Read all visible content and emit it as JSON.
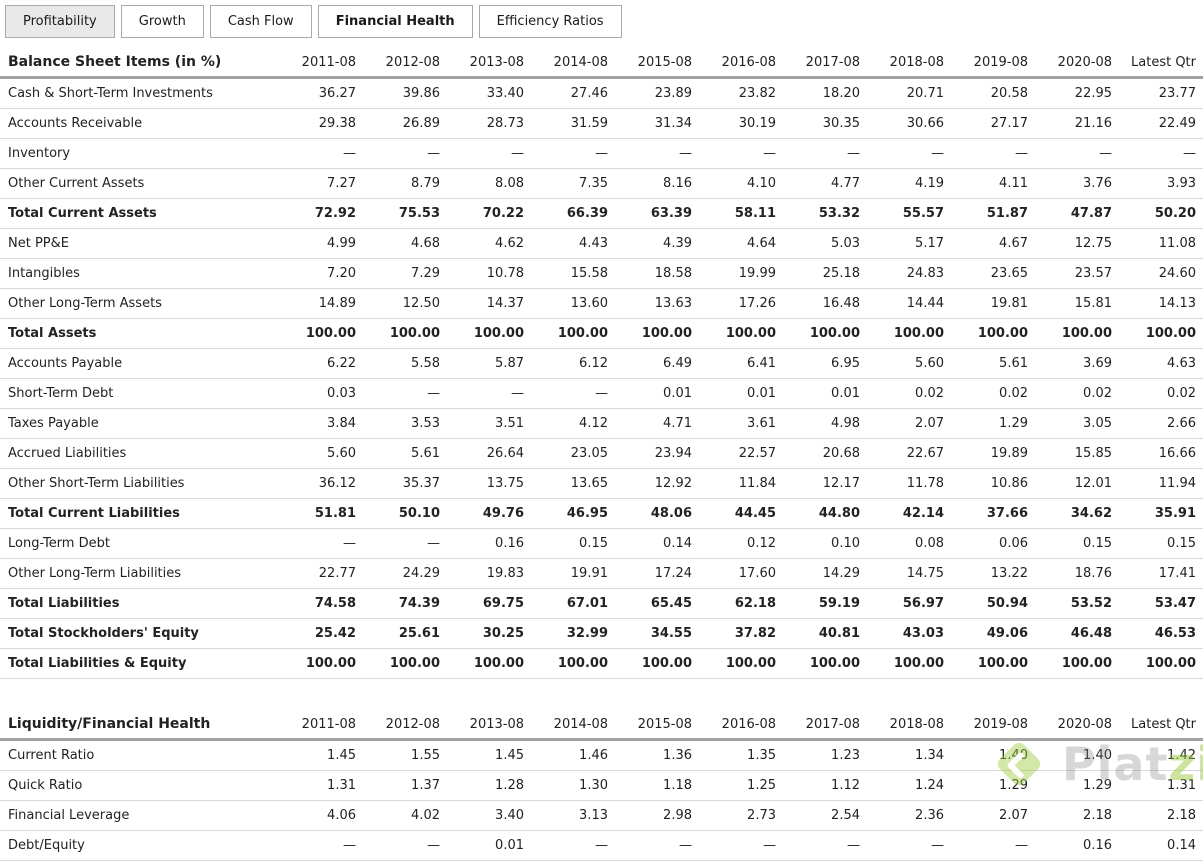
{
  "tabs": [
    {
      "label": "Profitability",
      "active": false,
      "shaded": true
    },
    {
      "label": "Growth",
      "active": false,
      "shaded": false
    },
    {
      "label": "Cash Flow",
      "active": false,
      "shaded": false
    },
    {
      "label": "Financial Health",
      "active": true,
      "shaded": false
    },
    {
      "label": "Efficiency Ratios",
      "active": false,
      "shaded": false
    }
  ],
  "columns": [
    "2011-08",
    "2012-08",
    "2013-08",
    "2014-08",
    "2015-08",
    "2016-08",
    "2017-08",
    "2018-08",
    "2019-08",
    "2020-08",
    "Latest Qtr"
  ],
  "sections": [
    {
      "title": "Balance Sheet Items (in %)",
      "rows": [
        {
          "label": "Cash & Short-Term Investments",
          "bold": false,
          "values": [
            "36.27",
            "39.86",
            "33.40",
            "27.46",
            "23.89",
            "23.82",
            "18.20",
            "20.71",
            "20.58",
            "22.95",
            "23.77"
          ]
        },
        {
          "label": "Accounts Receivable",
          "bold": false,
          "values": [
            "29.38",
            "26.89",
            "28.73",
            "31.59",
            "31.34",
            "30.19",
            "30.35",
            "30.66",
            "27.17",
            "21.16",
            "22.49"
          ]
        },
        {
          "label": "Inventory",
          "bold": false,
          "values": [
            "—",
            "—",
            "—",
            "—",
            "—",
            "—",
            "—",
            "—",
            "—",
            "—",
            "—"
          ]
        },
        {
          "label": "Other Current Assets",
          "bold": false,
          "values": [
            "7.27",
            "8.79",
            "8.08",
            "7.35",
            "8.16",
            "4.10",
            "4.77",
            "4.19",
            "4.11",
            "3.76",
            "3.93"
          ]
        },
        {
          "label": "Total Current Assets",
          "bold": true,
          "values": [
            "72.92",
            "75.53",
            "70.22",
            "66.39",
            "63.39",
            "58.11",
            "53.32",
            "55.57",
            "51.87",
            "47.87",
            "50.20"
          ]
        },
        {
          "label": "Net PP&E",
          "bold": false,
          "values": [
            "4.99",
            "4.68",
            "4.62",
            "4.43",
            "4.39",
            "4.64",
            "5.03",
            "5.17",
            "4.67",
            "12.75",
            "11.08"
          ]
        },
        {
          "label": "Intangibles",
          "bold": false,
          "values": [
            "7.20",
            "7.29",
            "10.78",
            "15.58",
            "18.58",
            "19.99",
            "25.18",
            "24.83",
            "23.65",
            "23.57",
            "24.60"
          ]
        },
        {
          "label": "Other Long-Term Assets",
          "bold": false,
          "values": [
            "14.89",
            "12.50",
            "14.37",
            "13.60",
            "13.63",
            "17.26",
            "16.48",
            "14.44",
            "19.81",
            "15.81",
            "14.13"
          ]
        },
        {
          "label": "Total Assets",
          "bold": true,
          "values": [
            "100.00",
            "100.00",
            "100.00",
            "100.00",
            "100.00",
            "100.00",
            "100.00",
            "100.00",
            "100.00",
            "100.00",
            "100.00"
          ]
        },
        {
          "label": "Accounts Payable",
          "bold": false,
          "values": [
            "6.22",
            "5.58",
            "5.87",
            "6.12",
            "6.49",
            "6.41",
            "6.95",
            "5.60",
            "5.61",
            "3.69",
            "4.63"
          ]
        },
        {
          "label": "Short-Term Debt",
          "bold": false,
          "values": [
            "0.03",
            "—",
            "—",
            "—",
            "0.01",
            "0.01",
            "0.01",
            "0.02",
            "0.02",
            "0.02",
            "0.02"
          ]
        },
        {
          "label": "Taxes Payable",
          "bold": false,
          "values": [
            "3.84",
            "3.53",
            "3.51",
            "4.12",
            "4.71",
            "3.61",
            "4.98",
            "2.07",
            "1.29",
            "3.05",
            "2.66"
          ]
        },
        {
          "label": "Accrued Liabilities",
          "bold": false,
          "values": [
            "5.60",
            "5.61",
            "26.64",
            "23.05",
            "23.94",
            "22.57",
            "20.68",
            "22.67",
            "19.89",
            "15.85",
            "16.66"
          ]
        },
        {
          "label": "Other Short-Term Liabilities",
          "bold": false,
          "values": [
            "36.12",
            "35.37",
            "13.75",
            "13.65",
            "12.92",
            "11.84",
            "12.17",
            "11.78",
            "10.86",
            "12.01",
            "11.94"
          ]
        },
        {
          "label": "Total Current Liabilities",
          "bold": true,
          "values": [
            "51.81",
            "50.10",
            "49.76",
            "46.95",
            "48.06",
            "44.45",
            "44.80",
            "42.14",
            "37.66",
            "34.62",
            "35.91"
          ]
        },
        {
          "label": "Long-Term Debt",
          "bold": false,
          "values": [
            "—",
            "—",
            "0.16",
            "0.15",
            "0.14",
            "0.12",
            "0.10",
            "0.08",
            "0.06",
            "0.15",
            "0.15"
          ]
        },
        {
          "label": "Other Long-Term Liabilities",
          "bold": false,
          "values": [
            "22.77",
            "24.29",
            "19.83",
            "19.91",
            "17.24",
            "17.60",
            "14.29",
            "14.75",
            "13.22",
            "18.76",
            "17.41"
          ]
        },
        {
          "label": "Total Liabilities",
          "bold": true,
          "values": [
            "74.58",
            "74.39",
            "69.75",
            "67.01",
            "65.45",
            "62.18",
            "59.19",
            "56.97",
            "50.94",
            "53.52",
            "53.47"
          ]
        },
        {
          "label": "Total Stockholders' Equity",
          "bold": true,
          "values": [
            "25.42",
            "25.61",
            "30.25",
            "32.99",
            "34.55",
            "37.82",
            "40.81",
            "43.03",
            "49.06",
            "46.48",
            "46.53"
          ]
        },
        {
          "label": "Total Liabilities & Equity",
          "bold": true,
          "values": [
            "100.00",
            "100.00",
            "100.00",
            "100.00",
            "100.00",
            "100.00",
            "100.00",
            "100.00",
            "100.00",
            "100.00",
            "100.00"
          ]
        }
      ]
    },
    {
      "title": "Liquidity/Financial Health",
      "rows": [
        {
          "label": "Current Ratio",
          "bold": false,
          "values": [
            "1.45",
            "1.55",
            "1.45",
            "1.46",
            "1.36",
            "1.35",
            "1.23",
            "1.34",
            "1.40",
            "1.40",
            "1.42"
          ]
        },
        {
          "label": "Quick Ratio",
          "bold": false,
          "values": [
            "1.31",
            "1.37",
            "1.28",
            "1.30",
            "1.18",
            "1.25",
            "1.12",
            "1.24",
            "1.29",
            "1.29",
            "1.31"
          ]
        },
        {
          "label": "Financial Leverage",
          "bold": false,
          "values": [
            "4.06",
            "4.02",
            "3.40",
            "3.13",
            "2.98",
            "2.73",
            "2.54",
            "2.36",
            "2.07",
            "2.18",
            "2.18"
          ]
        },
        {
          "label": "Debt/Equity",
          "bold": false,
          "values": [
            "—",
            "—",
            "0.01",
            "—",
            "—",
            "—",
            "—",
            "—",
            "—",
            "0.16",
            "0.14"
          ]
        }
      ]
    }
  ],
  "watermark": {
    "brand_part1": "Plat",
    "brand_part2": "zi",
    "logo_color": "#9BCA3E"
  }
}
